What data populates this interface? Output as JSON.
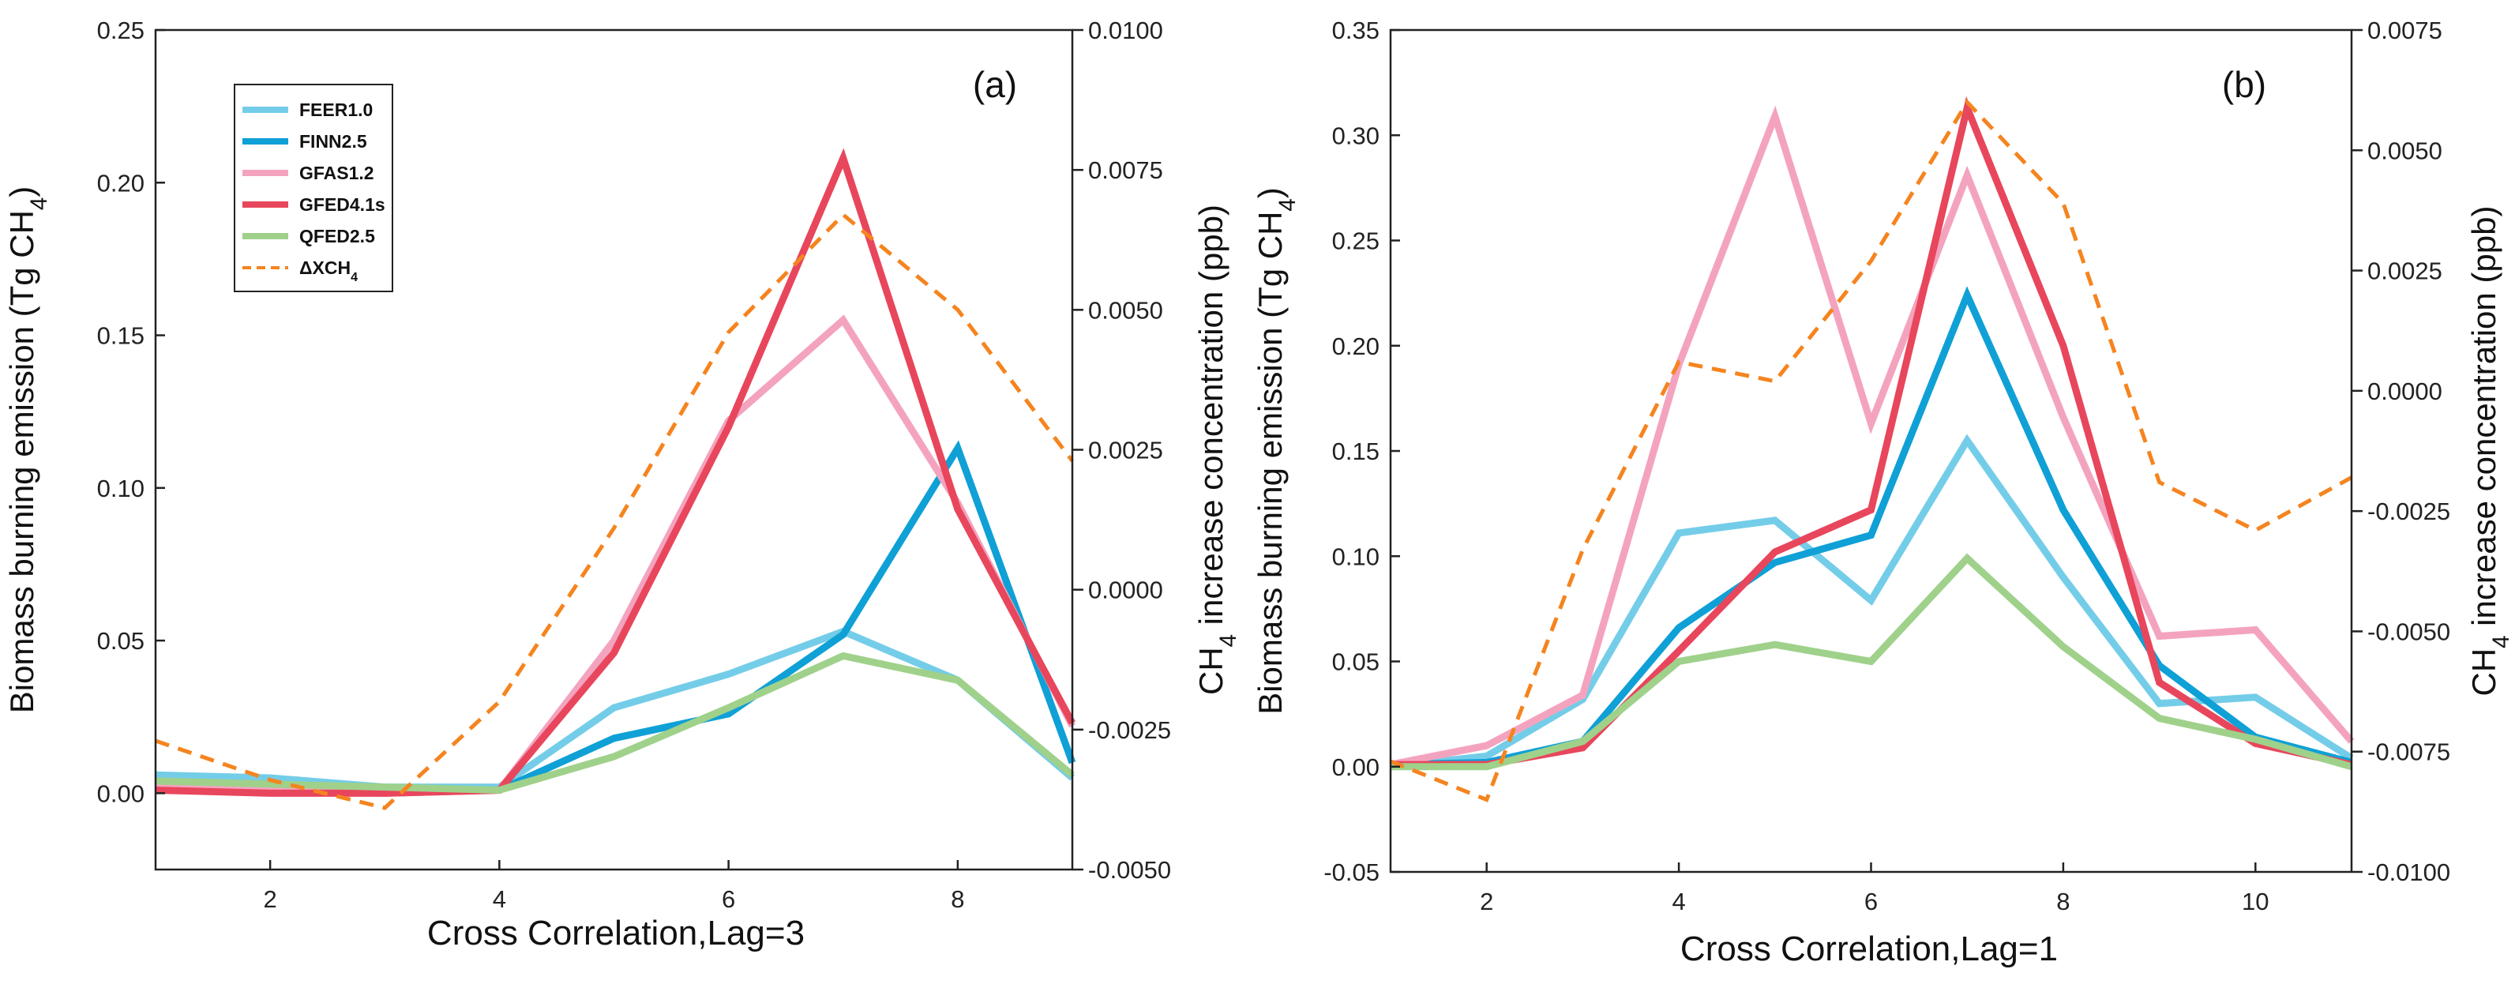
{
  "chart_data": [
    {
      "type": "line",
      "panel_label": "(a)",
      "xlabel": "Cross Correlation,Lag=3",
      "ylabel": "Biomass burning emission (Tg CH4)",
      "ylabel_parts": [
        "Biomass burning emission (Tg CH",
        "4",
        ")"
      ],
      "y2label": "CH4 increase concentration (ppb)",
      "y2label_parts": [
        "CH",
        "4",
        " increase concentration (ppb)"
      ],
      "xlim": [
        1,
        9
      ],
      "ylim": [
        -0.025,
        0.25
      ],
      "y2lim": [
        -0.005,
        0.01
      ],
      "xticks": [
        2,
        4,
        6,
        8
      ],
      "xtick_labels": [
        "2",
        "4",
        "6",
        "8"
      ],
      "yticks": [
        0.0,
        0.05,
        0.1,
        0.15,
        0.2,
        0.25
      ],
      "ytick_labels": [
        "0.00",
        "0.05",
        "0.10",
        "0.15",
        "0.20",
        "0.25"
      ],
      "y2ticks": [
        -0.005,
        -0.0025,
        0.0,
        0.0025,
        0.005,
        0.0075,
        0.01
      ],
      "y2tick_labels": [
        "-0.0050",
        "-0.0025",
        "0.0000",
        "0.0025",
        "0.0050",
        "0.0075",
        "0.0100"
      ],
      "x": [
        1,
        2,
        3,
        4,
        5,
        6,
        7,
        8,
        9
      ],
      "legend": {
        "position": "top-left",
        "entries": [
          "FEER1.0",
          "FINN2.5",
          "GFAS1.2",
          "GFED4.1s",
          "QFED2.5",
          "ΔXCH4"
        ],
        "entries_parts": [
          [
            "FEER1.0"
          ],
          [
            "FINN2.5"
          ],
          [
            "GFAS1.2"
          ],
          [
            "GFED4.1s"
          ],
          [
            "QFED2.5"
          ],
          [
            "ΔXCH",
            "4"
          ]
        ]
      },
      "series": [
        {
          "name": "FEER1.0",
          "color": "#74cde8",
          "axis": "left",
          "style": "solid",
          "values": [
            0.006,
            0.005,
            0.002,
            0.002,
            0.028,
            0.039,
            0.053,
            0.037,
            0.005
          ]
        },
        {
          "name": "FINN2.5",
          "color": "#0fa0d6",
          "axis": "left",
          "style": "solid",
          "values": [
            0.003,
            0.002,
            0.001,
            0.001,
            0.018,
            0.026,
            0.052,
            0.113,
            0.01
          ]
        },
        {
          "name": "GFAS1.2",
          "color": "#f4a3bf",
          "axis": "left",
          "style": "solid",
          "values": [
            0.002,
            0.001,
            0.0,
            0.001,
            0.05,
            0.122,
            0.155,
            0.095,
            0.022
          ]
        },
        {
          "name": "GFED4.1s",
          "color": "#e8465c",
          "axis": "left",
          "style": "solid",
          "values": [
            0.001,
            0.0,
            0.0,
            0.001,
            0.046,
            0.12,
            0.208,
            0.093,
            0.023
          ]
        },
        {
          "name": "QFED2.5",
          "color": "#9fd18b",
          "axis": "left",
          "style": "solid",
          "values": [
            0.004,
            0.003,
            0.002,
            0.001,
            0.012,
            0.028,
            0.045,
            0.037,
            0.006
          ]
        },
        {
          "name": "ΔXCH4",
          "color": "#f5841f",
          "axis": "right",
          "style": "dashed",
          "values": [
            -0.0027,
            -0.0034,
            -0.0039,
            -0.002,
            0.0011,
            0.0046,
            0.0067,
            0.005,
            0.0023
          ]
        }
      ]
    },
    {
      "type": "line",
      "panel_label": "(b)",
      "xlabel": "Cross Correlation,Lag=1",
      "ylabel": "Biomass burning emission (Tg CH4)",
      "ylabel_parts": [
        "Biomass burning emission (Tg CH",
        "4",
        ")"
      ],
      "y2label": "CH4 increase concentration (ppb)",
      "y2label_parts": [
        "CH",
        "4",
        " increase concentration (ppb)"
      ],
      "xlim": [
        1,
        11
      ],
      "ylim": [
        -0.05,
        0.35
      ],
      "y2lim": [
        -0.01,
        0.0075
      ],
      "xticks": [
        2,
        4,
        6,
        8,
        10
      ],
      "xtick_labels": [
        "2",
        "4",
        "6",
        "8",
        "10"
      ],
      "yticks": [
        -0.05,
        0.0,
        0.05,
        0.1,
        0.15,
        0.2,
        0.25,
        0.3,
        0.35
      ],
      "ytick_labels": [
        "-0.05",
        "0.00",
        "0.05",
        "0.10",
        "0.15",
        "0.20",
        "0.25",
        "0.30",
        "0.35"
      ],
      "y2ticks": [
        -0.01,
        -0.0075,
        -0.005,
        -0.0025,
        0.0,
        0.0025,
        0.005,
        0.0075
      ],
      "y2tick_labels": [
        "-0.0100",
        "-0.0075",
        "-0.0050",
        "-0.0025",
        "0.0000",
        "0.0025",
        "0.0050",
        "0.0075"
      ],
      "x": [
        1,
        2,
        3,
        4,
        5,
        6,
        7,
        8,
        9,
        10,
        11
      ],
      "series": [
        {
          "name": "FEER1.0",
          "color": "#74cde8",
          "axis": "left",
          "style": "solid",
          "values": [
            0.0,
            0.005,
            0.032,
            0.111,
            0.117,
            0.079,
            0.155,
            0.09,
            0.03,
            0.033,
            0.004
          ]
        },
        {
          "name": "FINN2.5",
          "color": "#0fa0d6",
          "axis": "left",
          "style": "solid",
          "values": [
            0.001,
            0.002,
            0.012,
            0.066,
            0.097,
            0.11,
            0.224,
            0.122,
            0.048,
            0.014,
            0.002
          ]
        },
        {
          "name": "GFAS1.2",
          "color": "#f4a3bf",
          "axis": "left",
          "style": "solid",
          "values": [
            0.001,
            0.01,
            0.034,
            0.191,
            0.309,
            0.163,
            0.281,
            0.166,
            0.062,
            0.065,
            0.012
          ]
        },
        {
          "name": "GFED4.1s",
          "color": "#e8465c",
          "axis": "left",
          "style": "solid",
          "values": [
            0.001,
            0.001,
            0.009,
            0.055,
            0.102,
            0.122,
            0.313,
            0.2,
            0.04,
            0.011,
            0.001
          ]
        },
        {
          "name": "QFED2.5",
          "color": "#9fd18b",
          "axis": "left",
          "style": "solid",
          "values": [
            0.0,
            0.0,
            0.012,
            0.05,
            0.058,
            0.05,
            0.099,
            0.057,
            0.023,
            0.013,
            0.0
          ]
        },
        {
          "name": "ΔXCH4",
          "color": "#f5841f",
          "axis": "right",
          "style": "dashed",
          "values": [
            -0.0077,
            -0.0085,
            -0.0033,
            0.0006,
            0.0002,
            0.0027,
            0.006,
            0.0039,
            -0.0019,
            -0.0029,
            -0.0018
          ]
        }
      ]
    }
  ]
}
